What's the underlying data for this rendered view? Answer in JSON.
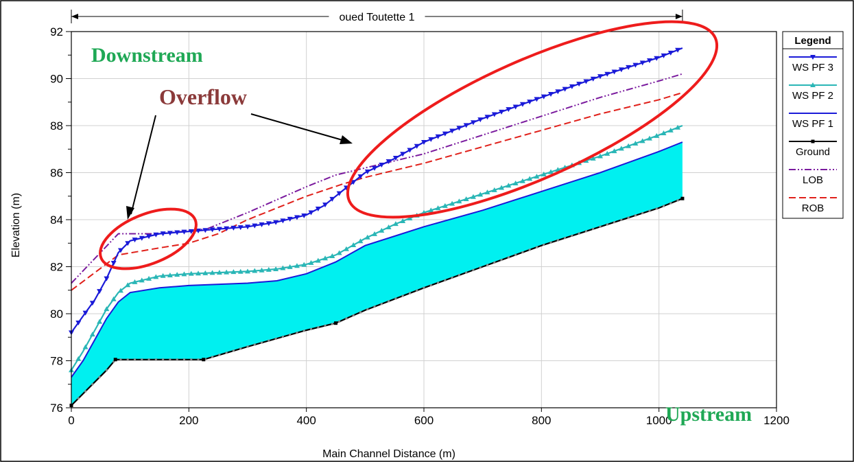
{
  "chart_data": {
    "type": "line",
    "reach_label": "oued Toutette 1",
    "xlabel": "Main Channel Distance (m)",
    "ylabel": "Elevation (m)",
    "xlim": [
      0,
      1200
    ],
    "ylim": [
      76,
      92
    ],
    "x_ticks": [
      0,
      200,
      400,
      600,
      800,
      1000,
      1200
    ],
    "y_ticks": [
      76,
      78,
      80,
      82,
      84,
      86,
      88,
      90,
      92
    ],
    "grid": true,
    "legend": {
      "title": "Legend",
      "placement": "right",
      "entries": [
        "WS  PF 3",
        "WS  PF 2",
        "WS  PF 1",
        "Ground",
        "LOB",
        "ROB"
      ]
    },
    "annotations": {
      "downstream": "Downstream",
      "overflow": "Overflow",
      "upstream": "Upstream"
    },
    "series": [
      {
        "name": "WS  PF 3",
        "color": "#1a1ad8",
        "style": "solid-triangle-down",
        "points": [
          [
            0,
            79.2
          ],
          [
            20,
            79.9
          ],
          [
            40,
            80.6
          ],
          [
            60,
            81.5
          ],
          [
            80,
            82.6
          ],
          [
            100,
            83.1
          ],
          [
            150,
            83.4
          ],
          [
            200,
            83.5
          ],
          [
            250,
            83.6
          ],
          [
            300,
            83.7
          ],
          [
            350,
            83.9
          ],
          [
            400,
            84.2
          ],
          [
            430,
            84.6
          ],
          [
            460,
            85.2
          ],
          [
            500,
            86.0
          ],
          [
            550,
            86.6
          ],
          [
            600,
            87.3
          ],
          [
            700,
            88.3
          ],
          [
            800,
            89.2
          ],
          [
            900,
            90.1
          ],
          [
            1000,
            90.9
          ],
          [
            1040,
            91.3
          ]
        ]
      },
      {
        "name": "WS  PF 2",
        "color": "#2ab6b6",
        "style": "solid-triangle-up",
        "points": [
          [
            0,
            77.6
          ],
          [
            20,
            78.4
          ],
          [
            40,
            79.3
          ],
          [
            60,
            80.2
          ],
          [
            80,
            80.9
          ],
          [
            100,
            81.3
          ],
          [
            150,
            81.6
          ],
          [
            200,
            81.7
          ],
          [
            250,
            81.75
          ],
          [
            300,
            81.8
          ],
          [
            350,
            81.9
          ],
          [
            400,
            82.1
          ],
          [
            450,
            82.5
          ],
          [
            500,
            83.2
          ],
          [
            550,
            83.8
          ],
          [
            600,
            84.3
          ],
          [
            700,
            85.1
          ],
          [
            800,
            85.9
          ],
          [
            900,
            86.7
          ],
          [
            1000,
            87.6
          ],
          [
            1040,
            88.0
          ]
        ]
      },
      {
        "name": "WS  PF 1",
        "color": "#1a1ad8",
        "style": "solid",
        "points": [
          [
            0,
            77.3
          ],
          [
            20,
            78.0
          ],
          [
            40,
            78.9
          ],
          [
            60,
            79.8
          ],
          [
            80,
            80.5
          ],
          [
            100,
            80.9
          ],
          [
            150,
            81.1
          ],
          [
            200,
            81.2
          ],
          [
            300,
            81.3
          ],
          [
            350,
            81.4
          ],
          [
            400,
            81.7
          ],
          [
            450,
            82.2
          ],
          [
            500,
            82.9
          ],
          [
            550,
            83.3
          ],
          [
            600,
            83.7
          ],
          [
            700,
            84.4
          ],
          [
            800,
            85.2
          ],
          [
            900,
            86.0
          ],
          [
            1000,
            86.9
          ],
          [
            1040,
            87.3
          ]
        ]
      },
      {
        "name": "Ground",
        "color": "#000000",
        "style": "solid-square",
        "points": [
          [
            0,
            76.1
          ],
          [
            20,
            76.6
          ],
          [
            40,
            77.1
          ],
          [
            60,
            77.6
          ],
          [
            75,
            78.05
          ],
          [
            225,
            78.05
          ],
          [
            300,
            78.6
          ],
          [
            350,
            78.95
          ],
          [
            400,
            79.3
          ],
          [
            450,
            79.6
          ],
          [
            500,
            80.15
          ],
          [
            600,
            81.1
          ],
          [
            700,
            82.0
          ],
          [
            800,
            82.9
          ],
          [
            900,
            83.7
          ],
          [
            1000,
            84.5
          ],
          [
            1040,
            84.9
          ]
        ]
      },
      {
        "name": "LOB",
        "color": "#7a1a9e",
        "style": "dash-dot-dot",
        "points": [
          [
            0,
            81.3
          ],
          [
            80,
            83.4
          ],
          [
            150,
            83.4
          ],
          [
            230,
            83.6
          ],
          [
            300,
            84.3
          ],
          [
            400,
            85.4
          ],
          [
            450,
            85.9
          ],
          [
            500,
            86.2
          ],
          [
            600,
            86.8
          ],
          [
            700,
            87.6
          ],
          [
            800,
            88.4
          ],
          [
            900,
            89.2
          ],
          [
            1000,
            89.9
          ],
          [
            1040,
            90.2
          ]
        ]
      },
      {
        "name": "ROB",
        "color": "#e0201a",
        "style": "dashed",
        "points": [
          [
            0,
            81.0
          ],
          [
            80,
            82.5
          ],
          [
            150,
            82.8
          ],
          [
            200,
            83.0
          ],
          [
            250,
            83.4
          ],
          [
            300,
            84.0
          ],
          [
            400,
            85.0
          ],
          [
            460,
            85.5
          ],
          [
            500,
            85.8
          ],
          [
            600,
            86.4
          ],
          [
            700,
            87.1
          ],
          [
            800,
            87.8
          ],
          [
            900,
            88.5
          ],
          [
            1000,
            89.1
          ],
          [
            1040,
            89.4
          ]
        ]
      }
    ]
  }
}
